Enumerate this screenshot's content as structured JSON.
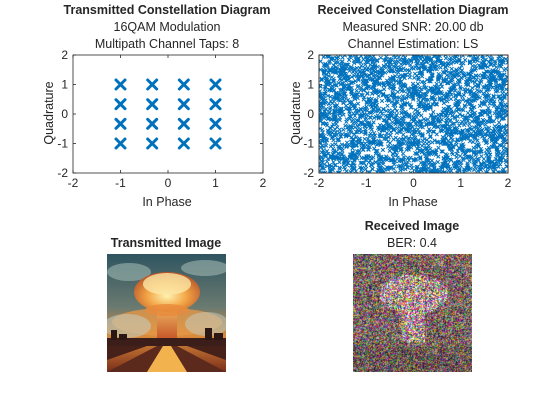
{
  "chart_data": [
    {
      "type": "scatter",
      "title": "Transmitted Constellation Diagram",
      "subtitle": [
        "16QAM Modulation",
        "Multipath Channel Taps: 8"
      ],
      "xlabel": "In Phase",
      "ylabel": "Quadrature",
      "xlim": [
        -2,
        2
      ],
      "ylim": [
        -2,
        2
      ],
      "xticks": [
        "-2",
        "-1",
        "0",
        "1",
        "2"
      ],
      "yticks": [
        "-2",
        "-1",
        "0",
        "1",
        "2"
      ],
      "grid": false,
      "marker": "x",
      "color": "#0072BD",
      "points": [
        [
          -1,
          1
        ],
        [
          -0.333,
          1
        ],
        [
          0.333,
          1
        ],
        [
          1,
          1
        ],
        [
          -1,
          0.333
        ],
        [
          -0.333,
          0.333
        ],
        [
          0.333,
          0.333
        ],
        [
          1,
          0.333
        ],
        [
          -1,
          -0.333
        ],
        [
          -0.333,
          -0.333
        ],
        [
          0.333,
          -0.333
        ],
        [
          1,
          -0.333
        ],
        [
          -1,
          -1
        ],
        [
          -0.333,
          -1
        ],
        [
          0.333,
          -1
        ],
        [
          1,
          -1
        ]
      ]
    },
    {
      "type": "scatter",
      "title": "Received Constellation Diagram",
      "subtitle": [
        "Measured SNR: 20.00 db",
        "Channel Estimation: LS"
      ],
      "xlabel": "In Phase",
      "ylabel": "Quadrature",
      "xlim": [
        -2,
        2
      ],
      "ylim": [
        -2,
        2
      ],
      "xticks": [
        "-2",
        "-1",
        "0",
        "1",
        "2"
      ],
      "yticks": [
        "-2",
        "-1",
        "0",
        "1",
        "2"
      ],
      "grid": false,
      "marker": "x",
      "color": "#0072BD",
      "points": "dense cloud of received symbols filling the full -2..2 range"
    }
  ],
  "images": {
    "transmitted": {
      "title": "Transmitted Image",
      "content": "illustration of a mushroom cloud explosion over a city at sunset"
    },
    "received": {
      "title": "Received Image",
      "subtitle": "BER: 0.4",
      "content": "noisy multicolored distorted version of the transmitted image"
    }
  }
}
